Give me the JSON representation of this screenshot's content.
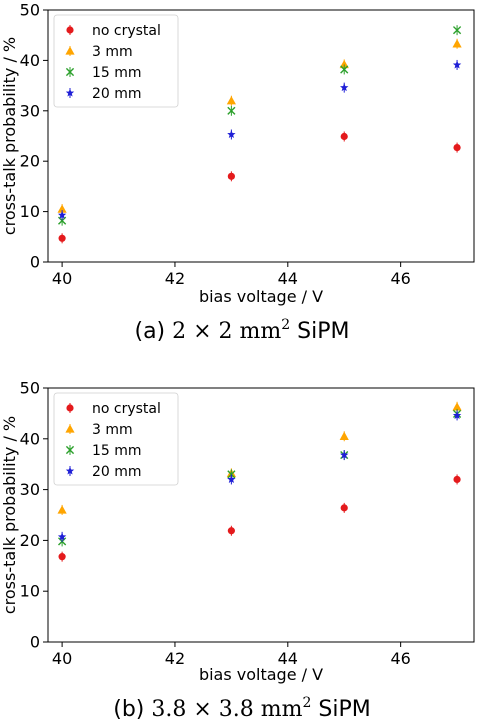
{
  "colors": {
    "no_crystal": "#e41a1c",
    "mm3": "#ffa500",
    "mm15": "#2ca02c",
    "mm20": "#1f1fd6"
  },
  "chart_data": [
    {
      "type": "scatter",
      "caption": {
        "prefix": "(a) ",
        "math": "2 × 2 mm",
        "sup": "2",
        "suffix": " SiPM"
      },
      "xlabel": "bias voltage / V",
      "ylabel": "cross-talk probability / %",
      "xlim": [
        39.75,
        47.3
      ],
      "ylim": [
        0,
        50
      ],
      "x_ticks": [
        40,
        42,
        44,
        46
      ],
      "y_ticks": [
        0,
        10,
        20,
        30,
        40,
        50
      ],
      "legend_position": "top-left",
      "series": [
        {
          "name": "no crystal",
          "marker": "circle",
          "color_key": "no_crystal",
          "x": [
            40,
            43,
            45,
            47
          ],
          "y": [
            4.7,
            17.0,
            24.9,
            22.7
          ]
        },
        {
          "name": "3 mm",
          "marker": "triangle",
          "color_key": "mm3",
          "x": [
            40,
            43,
            45,
            47
          ],
          "y": [
            10.5,
            32.0,
            39.2,
            43.3
          ]
        },
        {
          "name": "15 mm",
          "marker": "x",
          "color_key": "mm15",
          "x": [
            40,
            43,
            45,
            47
          ],
          "y": [
            8.2,
            30.0,
            38.2,
            46.0
          ]
        },
        {
          "name": "20 mm",
          "marker": "star",
          "color_key": "mm20",
          "x": [
            40,
            43,
            45,
            47
          ],
          "y": [
            9.3,
            25.3,
            34.6,
            39.1
          ]
        }
      ]
    },
    {
      "type": "scatter",
      "caption": {
        "prefix": "(b) ",
        "math": "3.8 × 3.8 mm",
        "sup": "2",
        "suffix": " SiPM"
      },
      "xlabel": "bias voltage / V",
      "ylabel": "cross-talk probability / %",
      "xlim": [
        39.75,
        47.3
      ],
      "ylim": [
        0,
        50
      ],
      "x_ticks": [
        40,
        42,
        44,
        46
      ],
      "y_ticks": [
        0,
        10,
        20,
        30,
        40,
        50
      ],
      "legend_position": "top-left",
      "series": [
        {
          "name": "no crystal",
          "marker": "circle",
          "color_key": "no_crystal",
          "x": [
            40,
            43,
            45,
            47
          ],
          "y": [
            16.8,
            21.9,
            26.4,
            32.0
          ]
        },
        {
          "name": "3 mm",
          "marker": "triangle",
          "color_key": "mm3",
          "x": [
            40,
            43,
            45,
            47
          ],
          "y": [
            26.0,
            33.2,
            40.5,
            46.3
          ]
        },
        {
          "name": "15 mm",
          "marker": "x",
          "color_key": "mm15",
          "x": [
            40,
            43,
            45,
            47
          ],
          "y": [
            19.8,
            33.0,
            36.8,
            44.9
          ]
        },
        {
          "name": "20 mm",
          "marker": "star",
          "color_key": "mm20",
          "x": [
            40,
            43,
            45,
            47
          ],
          "y": [
            20.7,
            32.0,
            36.8,
            44.6
          ]
        }
      ]
    }
  ]
}
